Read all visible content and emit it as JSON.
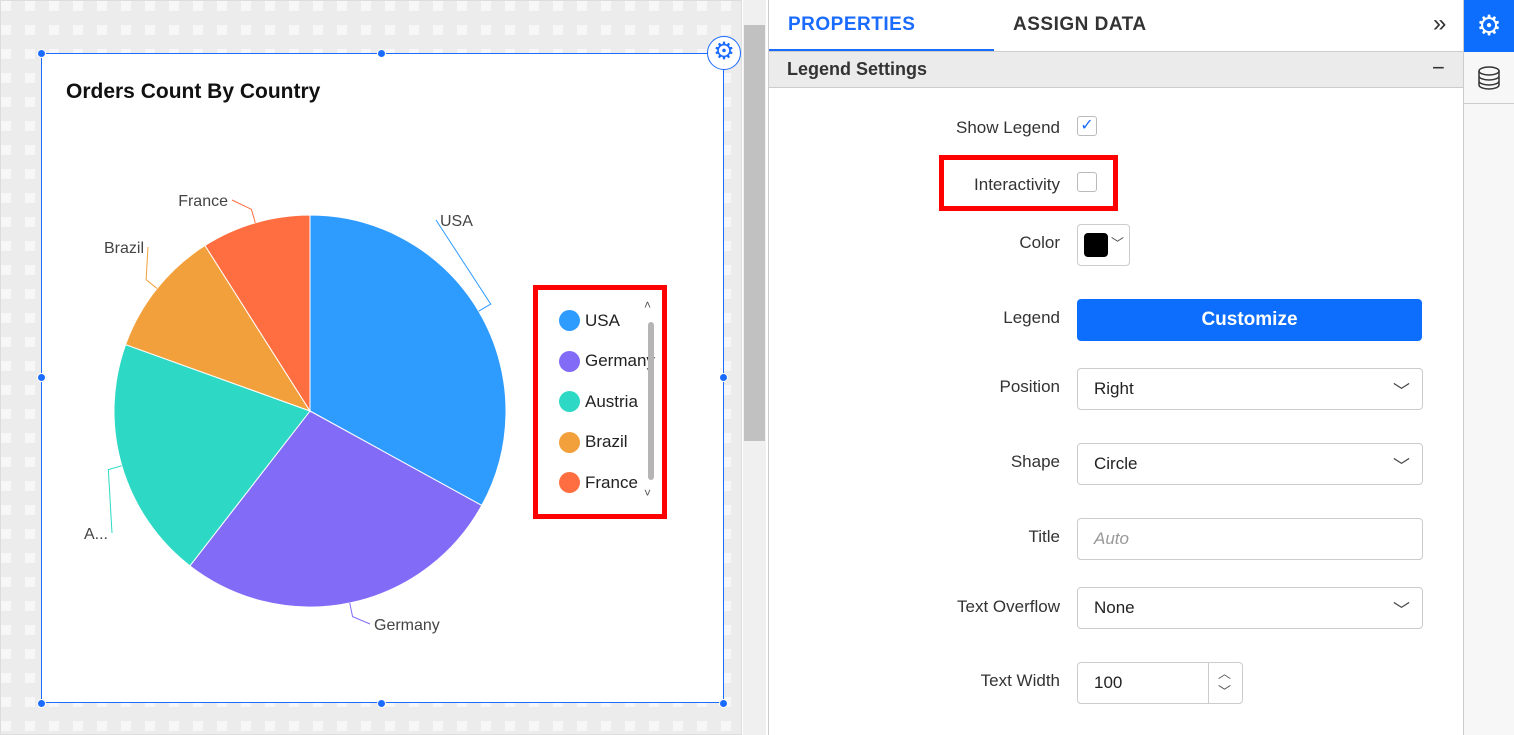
{
  "widget": {
    "title": "Orders Count By Country"
  },
  "chart_data": {
    "type": "pie",
    "title": "Orders Count By Country",
    "categories": [
      "USA",
      "Germany",
      "Austria",
      "Brazil",
      "France"
    ],
    "values": [
      33,
      27.5,
      20,
      10.5,
      9
    ],
    "colors": [
      "#2e9bff",
      "#816bf7",
      "#2dd9c5",
      "#f2a03b",
      "#ff6e40"
    ],
    "data_labels": [
      "USA",
      "Germany",
      "A...",
      "Brazil",
      "France"
    ],
    "legend": {
      "position": "right",
      "items": [
        "USA",
        "Germany",
        "Austria",
        "Brazil",
        "France"
      ]
    }
  },
  "panel": {
    "tabs": [
      "PROPERTIES",
      "ASSIGN DATA"
    ],
    "section": "Legend Settings",
    "fields": {
      "show_legend": {
        "label": "Show Legend",
        "checked": true
      },
      "interactivity": {
        "label": "Interactivity",
        "checked": false
      },
      "color": {
        "label": "Color",
        "value": "#000000"
      },
      "legend": {
        "label": "Legend",
        "button": "Customize"
      },
      "position": {
        "label": "Position",
        "value": "Right"
      },
      "shape": {
        "label": "Shape",
        "value": "Circle"
      },
      "title": {
        "label": "Title",
        "placeholder": "Auto"
      },
      "text_overflow": {
        "label": "Text Overflow",
        "value": "None"
      },
      "text_width": {
        "label": "Text Width",
        "value": "100"
      }
    }
  },
  "icons": {
    "expand": "»",
    "collapse": "−",
    "check": "✓",
    "chevron": "⌄",
    "gear": "⚙"
  }
}
